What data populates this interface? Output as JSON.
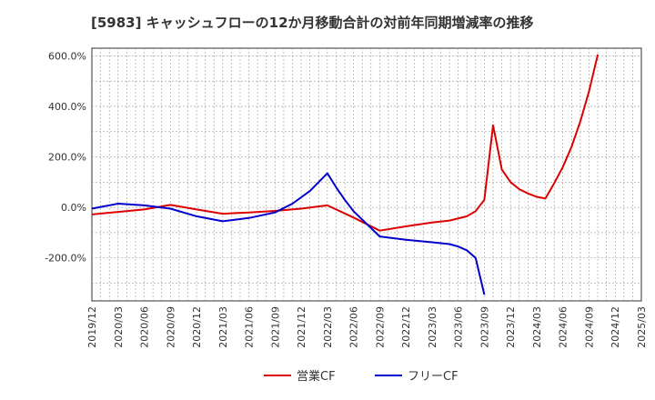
{
  "chart_data": {
    "type": "line",
    "title": "[5983]  キャッシュフローの12か月移動合計の対前年同期増減率の推移",
    "xlabel": "",
    "ylabel": "",
    "ylim": [
      -370,
      630
    ],
    "yticks": [
      600,
      400,
      200,
      0,
      -200
    ],
    "ytick_labels": [
      "600.0%",
      "400.0%",
      "200.0%",
      "0.0%",
      "-200.0%"
    ],
    "xticks": [
      "2019/12",
      "2020/03",
      "2020/06",
      "2020/09",
      "2020/12",
      "2021/03",
      "2021/06",
      "2021/09",
      "2021/12",
      "2022/03",
      "2022/06",
      "2022/09",
      "2022/12",
      "2023/03",
      "2023/06",
      "2023/09",
      "2023/12",
      "2024/03",
      "2024/06",
      "2024/09",
      "2024/12",
      "2025/03"
    ],
    "grid": true,
    "legend_position": "bottom",
    "series": [
      {
        "name": "営業CF",
        "color": "#dd0000",
        "points": [
          [
            "2019/12",
            -28
          ],
          [
            "2020/03",
            -18
          ],
          [
            "2020/06",
            -8
          ],
          [
            "2020/09",
            10
          ],
          [
            "2020/12",
            -8
          ],
          [
            "2021/03",
            -25
          ],
          [
            "2021/06",
            -20
          ],
          [
            "2021/09",
            -14
          ],
          [
            "2021/12",
            -5
          ],
          [
            "2022/03",
            8
          ],
          [
            "2022/06",
            -40
          ],
          [
            "2022/09",
            -92
          ],
          [
            "2022/12",
            -75
          ],
          [
            "2023/03",
            -60
          ],
          [
            "2023/05",
            -52
          ],
          [
            "2023/07",
            -35
          ],
          [
            "2023/08",
            -15
          ],
          [
            "2023/09",
            30
          ],
          [
            "2023/10",
            325
          ],
          [
            "2023/11",
            150
          ],
          [
            "2023/12",
            100
          ],
          [
            "2024/01",
            72
          ],
          [
            "2024/02",
            55
          ],
          [
            "2024/03",
            42
          ],
          [
            "2024/04",
            35
          ],
          [
            "2024/05",
            95
          ],
          [
            "2024/06",
            160
          ],
          [
            "2024/07",
            240
          ],
          [
            "2024/08",
            340
          ],
          [
            "2024/09",
            460
          ],
          [
            "2024/10",
            605
          ]
        ]
      },
      {
        "name": "フリーCF",
        "color": "#0000cc",
        "points": [
          [
            "2019/12",
            -5
          ],
          [
            "2020/03",
            15
          ],
          [
            "2020/06",
            8
          ],
          [
            "2020/09",
            -5
          ],
          [
            "2020/12",
            -35
          ],
          [
            "2021/03",
            -55
          ],
          [
            "2021/06",
            -42
          ],
          [
            "2021/09",
            -20
          ],
          [
            "2021/11",
            15
          ],
          [
            "2022/01",
            65
          ],
          [
            "2022/03",
            135
          ],
          [
            "2022/04",
            80
          ],
          [
            "2022/05",
            30
          ],
          [
            "2022/06",
            -15
          ],
          [
            "2022/09",
            -115
          ],
          [
            "2022/12",
            -128
          ],
          [
            "2023/03",
            -138
          ],
          [
            "2023/05",
            -145
          ],
          [
            "2023/06",
            -155
          ],
          [
            "2023/07",
            -170
          ],
          [
            "2023/08",
            -200
          ],
          [
            "2023/09",
            -345
          ]
        ]
      }
    ]
  }
}
